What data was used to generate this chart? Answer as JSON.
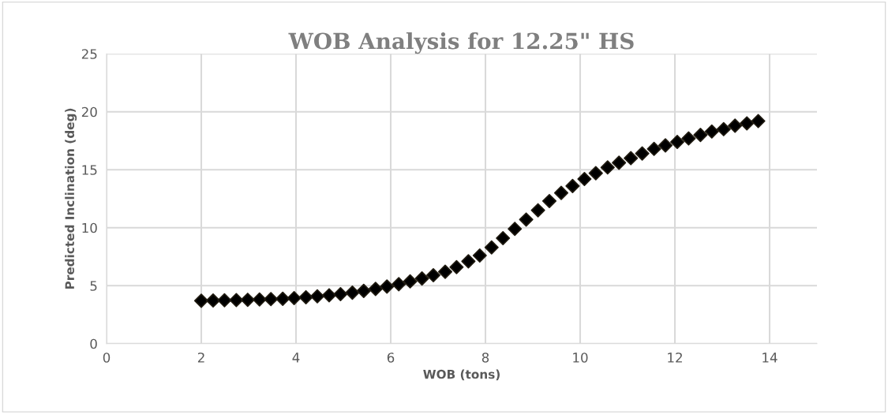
{
  "chart_data": {
    "type": "scatter",
    "title": "WOB Analysis for 12.25\" HS",
    "xlabel": "WOB (tons)",
    "ylabel": "Predicted Inclination (deg)",
    "x": [
      2.0,
      2.25,
      2.49,
      2.74,
      2.98,
      3.23,
      3.47,
      3.72,
      3.96,
      4.21,
      4.45,
      4.7,
      4.94,
      5.19,
      5.43,
      5.68,
      5.92,
      6.17,
      6.41,
      6.66,
      6.9,
      7.15,
      7.39,
      7.64,
      7.88,
      8.13,
      8.37,
      8.62,
      8.86,
      9.11,
      9.35,
      9.6,
      9.84,
      10.09,
      10.33,
      10.58,
      10.82,
      11.07,
      11.31,
      11.56,
      11.8,
      12.05,
      12.29,
      12.54,
      12.78,
      13.03,
      13.27,
      13.52,
      13.76
    ],
    "series": [
      {
        "color": "#000000",
        "values": [
          3.7,
          3.72,
          3.74,
          3.76,
          3.78,
          3.81,
          3.84,
          3.87,
          3.93,
          4.0,
          4.08,
          4.17,
          4.27,
          4.4,
          4.55,
          4.72,
          4.92,
          5.13,
          5.37,
          5.62,
          5.9,
          6.2,
          6.6,
          7.1,
          7.6,
          8.3,
          9.1,
          9.9,
          10.7,
          11.5,
          12.3,
          13.0,
          13.6,
          14.2,
          14.7,
          15.2,
          15.6,
          16.0,
          16.4,
          16.8,
          17.1,
          17.4,
          17.7,
          18.0,
          18.3,
          18.5,
          18.8,
          19.0,
          19.2
        ]
      }
    ],
    "xlim": [
      0,
      15
    ],
    "ylim": [
      0,
      25
    ],
    "xticks": [
      0,
      2,
      4,
      6,
      8,
      10,
      12,
      14
    ],
    "yticks": [
      0,
      5,
      10,
      15,
      20,
      25
    ],
    "grid": true,
    "marker": "diamond"
  }
}
